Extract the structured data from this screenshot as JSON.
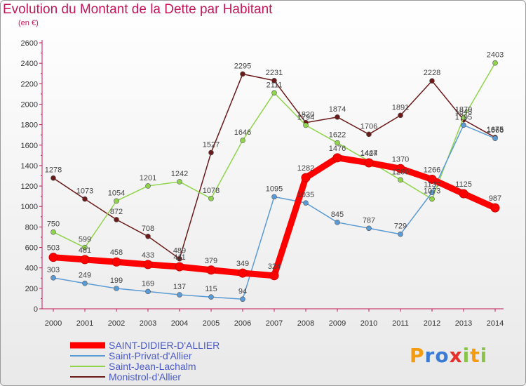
{
  "title": "Evolution du Montant de la Dette par Habitant",
  "subtitle": "(en €)",
  "logo": "Proxiti",
  "chart_data": {
    "type": "line",
    "title": "Evolution du Montant de la Dette par Habitant",
    "subtitle": "(en €)",
    "x": [
      2000,
      2001,
      2002,
      2003,
      2004,
      2005,
      2006,
      2007,
      2008,
      2009,
      2010,
      2011,
      2012,
      2013,
      2014
    ],
    "ylim": [
      0,
      2600
    ],
    "yticks": [
      0,
      200,
      400,
      600,
      800,
      1000,
      1200,
      1400,
      1600,
      1800,
      2000,
      2200,
      2400,
      2600
    ],
    "grid": false,
    "legend_position": "bottom-left",
    "series": [
      {
        "name": "Monistrol-d'Allier",
        "color": "#6b1a1a",
        "values": [
          1278,
          1073,
          872,
          708,
          489,
          1527,
          2295,
          2231,
          1820,
          1874,
          1706,
          1891,
          2228,
          1848,
          1675
        ]
      },
      {
        "name": "Saint-Jean-Lachalm",
        "color": "#8fd44a",
        "values": [
          750,
          599,
          1054,
          1201,
          1242,
          1078,
          1646,
          2111,
          1794,
          1622,
          1444,
          1260,
          1073,
          1870,
          2403
        ]
      },
      {
        "name": "Saint-Privat-d'Allier",
        "color": "#5b9bd5",
        "values": [
          303,
          249,
          199,
          169,
          137,
          115,
          94,
          1095,
          1035,
          845,
          787,
          729,
          1137,
          1795,
          1666
        ]
      },
      {
        "name": "SAINT-DIDIER-D'ALLIER",
        "color": "#ff0000",
        "values": [
          503,
          481,
          458,
          433,
          411,
          379,
          349,
          324,
          1282,
          1476,
          1427,
          1370,
          1266,
          1125,
          987
        ]
      }
    ]
  }
}
